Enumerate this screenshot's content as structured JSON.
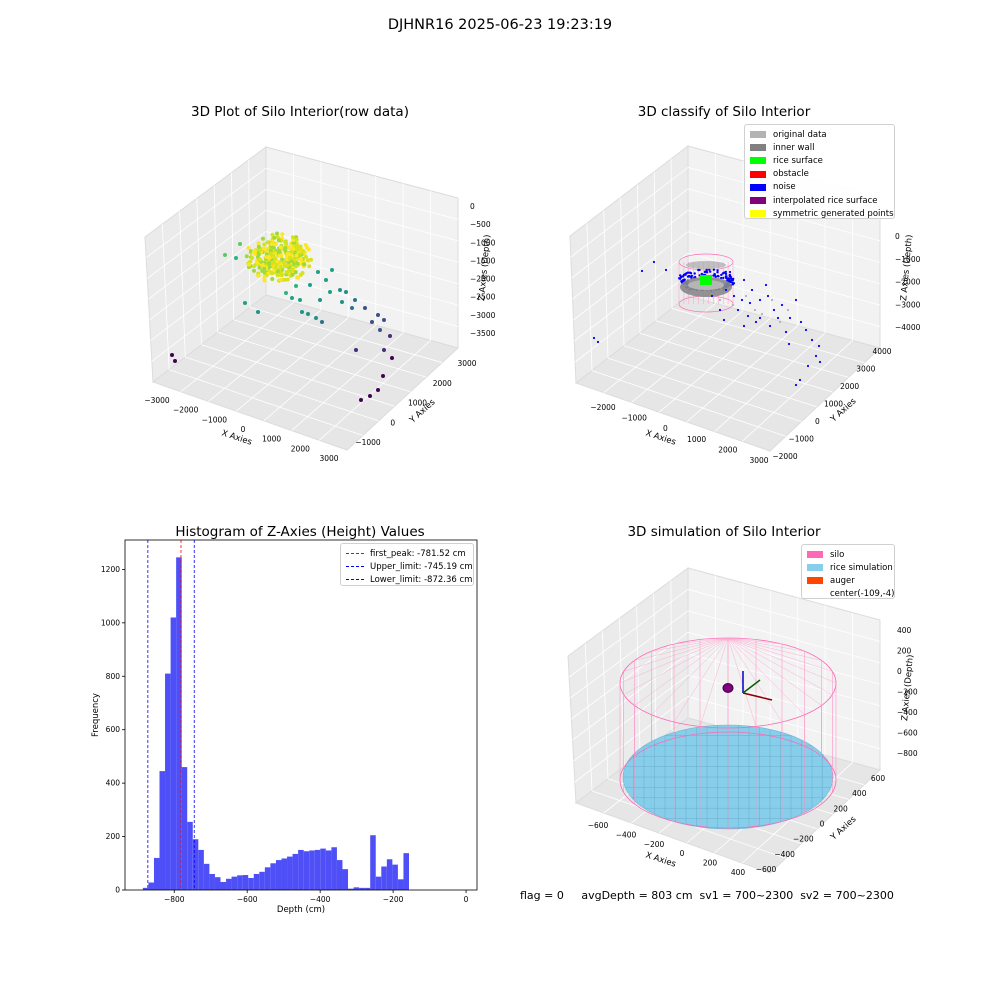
{
  "figure": {
    "suptitle": "DJHNR16 2025-06-23 19:23:19",
    "footer": "flag = 0     avgDepth = 803 cm  sv1 = 700~2300  sv2 = 700~2300"
  },
  "chart_data": [
    {
      "type": "scatter",
      "projection": "3d",
      "title": "3D Plot of Silo Interior(row data)",
      "xlabel": "X Axies",
      "ylabel": "Y Axies",
      "zlabel": "Z Axies (Depth)",
      "xticks": [
        "−3000",
        "−2000",
        "−1000",
        "0",
        "1000",
        "2000",
        "3000"
      ],
      "yticks": [
        "−1000",
        "0",
        "1000",
        "2000",
        "3000"
      ],
      "zticks": [
        "0",
        "−500",
        "−1000",
        "−1500",
        "−2000",
        "−2500",
        "−3000",
        "−3500"
      ],
      "colormap": "viridis",
      "grid": true
    },
    {
      "type": "scatter",
      "projection": "3d",
      "title": "3D classify of Silo Interior",
      "xlabel": "X Axies",
      "ylabel": "Y Axies",
      "zlabel": "Z Axies (Depth)",
      "xticks": [
        "−2000",
        "−1000",
        "0",
        "1000",
        "2000",
        "3000"
      ],
      "yticks": [
        "−2000",
        "−1000",
        "0",
        "1000",
        "2000",
        "3000",
        "4000"
      ],
      "zticks": [
        "0",
        "−1000",
        "−2000",
        "−3000",
        "−4000"
      ],
      "legend_position": "top-right",
      "legend": [
        {
          "label": "original data",
          "color": "#b3b3b3"
        },
        {
          "label": "inner wall",
          "color": "#808080"
        },
        {
          "label": "rice surface",
          "color": "#00ff00"
        },
        {
          "label": "obstacle",
          "color": "#ff0000"
        },
        {
          "label": "noise",
          "color": "#0000ff"
        },
        {
          "label": "interpolated rice surface",
          "color": "#800080"
        },
        {
          "label": "symmetric generated points",
          "color": "#ffff00"
        }
      ],
      "grid": true
    },
    {
      "type": "bar",
      "title": "Histogram of Z-Axies (Height) Values",
      "xlabel": "Depth (cm)",
      "ylabel": "Frequency",
      "xlim": [
        -935,
        30
      ],
      "ylim": [
        0,
        1310
      ],
      "xticks": [
        -800,
        -600,
        -400,
        -200,
        0
      ],
      "xtick_labels": [
        "−800",
        "−600",
        "−400",
        "−200",
        "0"
      ],
      "yticks": [
        0,
        200,
        400,
        600,
        800,
        1000,
        1200
      ],
      "bar_color": "#4f4ff7",
      "bin_width": 15.2,
      "bin_start": -886,
      "values": [
        8,
        28,
        120,
        445,
        810,
        1020,
        1245,
        460,
        255,
        190,
        150,
        98,
        60,
        48,
        30,
        42,
        50,
        55,
        56,
        45,
        60,
        68,
        85,
        100,
        112,
        118,
        125,
        135,
        150,
        145,
        148,
        150,
        155,
        148,
        160,
        112,
        78,
        5,
        10,
        8,
        8,
        205,
        50,
        88,
        115,
        95,
        40,
        138
      ],
      "vlines": [
        {
          "label": "first_peak: -781.52 cm",
          "x": -781.52,
          "color": "#ff0000"
        },
        {
          "label": "Upper_limit: -745.19 cm",
          "x": -745.19,
          "color": "#0000ff"
        },
        {
          "label": "Lower_limit: -872.36 cm",
          "x": -872.36,
          "color": "#0000ff"
        }
      ],
      "legend_position": "top-right"
    },
    {
      "type": "scatter",
      "projection": "3d",
      "title": "3D simulation of Silo Interior",
      "xlabel": "X Axies",
      "ylabel": "Y Axies",
      "zlabel": "Z Axies (Depth)",
      "xticks": [
        "−600",
        "−400",
        "−200",
        "0",
        "200",
        "400"
      ],
      "yticks": [
        "−600",
        "−400",
        "−200",
        "0",
        "200",
        "400",
        "600"
      ],
      "zticks": [
        "400",
        "200",
        "0",
        "−200",
        "−400",
        "−600",
        "−800"
      ],
      "legend_position": "top-right",
      "legend": [
        {
          "label": "silo",
          "color": "#ff69b4"
        },
        {
          "label": "rice simulation",
          "color": "#87ceeb"
        },
        {
          "label": "auger",
          "color": "#ff4500"
        },
        {
          "label": "center(-109,-4)",
          "color": ""
        }
      ],
      "grid": true
    }
  ]
}
